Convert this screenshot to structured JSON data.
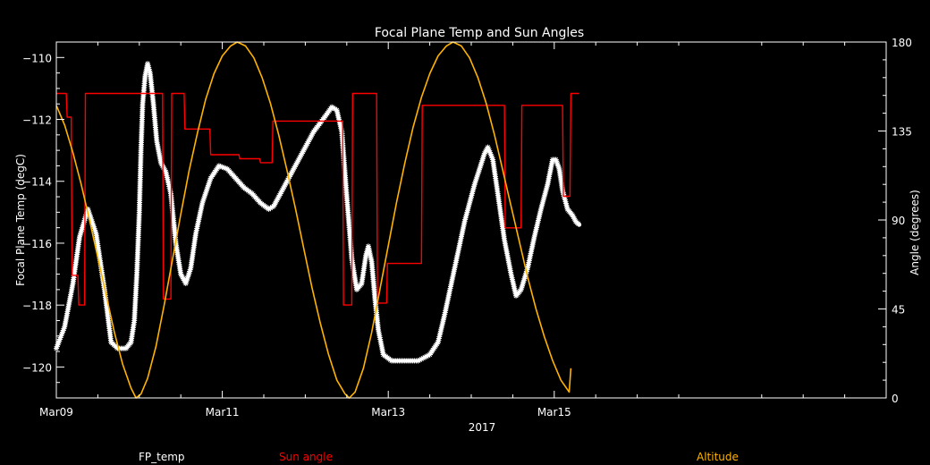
{
  "chart_data": {
    "type": "line",
    "title": "Focal Plane Temp and Sun Angles",
    "xlabel": "2017",
    "ylabel_left": "Focal Plane Temp (degC)",
    "ylabel_right": "Angle (degrees)",
    "x_unit": "days since Mar09 2017 00:00",
    "xlim": [
      0,
      10
    ],
    "ylim_left": [
      -121,
      -109.5
    ],
    "ylim_right": [
      0,
      180
    ],
    "x_ticks": [
      {
        "v": 0,
        "label": "Mar09"
      },
      {
        "v": 2,
        "label": "Mar11"
      },
      {
        "v": 4,
        "label": "Mar13"
      },
      {
        "v": 6,
        "label": "Mar15"
      }
    ],
    "y_left_ticks": [
      {
        "v": -110,
        "label": "−110"
      },
      {
        "v": -112,
        "label": "−112"
      },
      {
        "v": -114,
        "label": "−114"
      },
      {
        "v": -116,
        "label": "−116"
      },
      {
        "v": -118,
        "label": "−118"
      },
      {
        "v": -120,
        "label": "−120"
      }
    ],
    "y_right_ticks": [
      {
        "v": 180,
        "label": "180"
      },
      {
        "v": 135,
        "label": "135"
      },
      {
        "v": 90,
        "label": "90"
      },
      {
        "v": 45,
        "label": "45"
      },
      {
        "v": 0,
        "label": "0"
      }
    ],
    "legend": [
      {
        "name": "FP_temp",
        "color": "#ffffff"
      },
      {
        "name": "Sun angle",
        "color": "#ff0000"
      },
      {
        "name": "Altitude",
        "color": "#ffb300"
      }
    ],
    "series": [
      {
        "name": "FP_temp",
        "axis": "left",
        "color": "#ffffff",
        "style": "markers",
        "points": [
          [
            0.0,
            -119.4
          ],
          [
            0.1,
            -118.7
          ],
          [
            0.2,
            -117.3
          ],
          [
            0.28,
            -115.8
          ],
          [
            0.38,
            -114.9
          ],
          [
            0.48,
            -115.7
          ],
          [
            0.58,
            -117.5
          ],
          [
            0.66,
            -119.2
          ],
          [
            0.74,
            -119.4
          ],
          [
            0.84,
            -119.4
          ],
          [
            0.9,
            -119.2
          ],
          [
            0.94,
            -118.5
          ],
          [
            0.97,
            -117.0
          ],
          [
            1.0,
            -115.0
          ],
          [
            1.02,
            -113.0
          ],
          [
            1.04,
            -111.5
          ],
          [
            1.07,
            -110.6
          ],
          [
            1.1,
            -110.2
          ],
          [
            1.13,
            -110.5
          ],
          [
            1.17,
            -111.5
          ],
          [
            1.21,
            -112.7
          ],
          [
            1.26,
            -113.4
          ],
          [
            1.32,
            -113.7
          ],
          [
            1.38,
            -114.4
          ],
          [
            1.44,
            -116.0
          ],
          [
            1.5,
            -117.0
          ],
          [
            1.56,
            -117.3
          ],
          [
            1.62,
            -116.8
          ],
          [
            1.68,
            -115.7
          ],
          [
            1.76,
            -114.7
          ],
          [
            1.86,
            -113.9
          ],
          [
            1.96,
            -113.5
          ],
          [
            2.06,
            -113.6
          ],
          [
            2.16,
            -113.9
          ],
          [
            2.26,
            -114.2
          ],
          [
            2.36,
            -114.4
          ],
          [
            2.46,
            -114.7
          ],
          [
            2.56,
            -114.9
          ],
          [
            2.62,
            -114.8
          ],
          [
            2.7,
            -114.4
          ],
          [
            2.8,
            -113.9
          ],
          [
            2.96,
            -113.1
          ],
          [
            3.1,
            -112.4
          ],
          [
            3.24,
            -111.9
          ],
          [
            3.32,
            -111.6
          ],
          [
            3.38,
            -111.7
          ],
          [
            3.44,
            -112.4
          ],
          [
            3.5,
            -114.5
          ],
          [
            3.56,
            -116.5
          ],
          [
            3.62,
            -117.5
          ],
          [
            3.68,
            -117.3
          ],
          [
            3.73,
            -116.4
          ],
          [
            3.76,
            -116.1
          ],
          [
            3.8,
            -116.6
          ],
          [
            3.84,
            -117.8
          ],
          [
            3.88,
            -118.8
          ],
          [
            3.94,
            -119.6
          ],
          [
            4.04,
            -119.8
          ],
          [
            4.2,
            -119.8
          ],
          [
            4.36,
            -119.8
          ],
          [
            4.5,
            -119.6
          ],
          [
            4.6,
            -119.2
          ],
          [
            4.68,
            -118.3
          ],
          [
            4.8,
            -116.8
          ],
          [
            4.92,
            -115.3
          ],
          [
            5.04,
            -114.1
          ],
          [
            5.16,
            -113.1
          ],
          [
            5.2,
            -112.9
          ],
          [
            5.26,
            -113.3
          ],
          [
            5.32,
            -114.4
          ],
          [
            5.4,
            -115.9
          ],
          [
            5.48,
            -117.0
          ],
          [
            5.54,
            -117.7
          ],
          [
            5.6,
            -117.5
          ],
          [
            5.68,
            -116.8
          ],
          [
            5.76,
            -115.8
          ],
          [
            5.84,
            -114.9
          ],
          [
            5.92,
            -114.1
          ],
          [
            5.98,
            -113.3
          ],
          [
            6.02,
            -113.3
          ],
          [
            6.06,
            -113.6
          ],
          [
            6.1,
            -114.3
          ],
          [
            6.16,
            -114.9
          ],
          [
            6.22,
            -115.1
          ],
          [
            6.26,
            -115.3
          ],
          [
            6.3,
            -115.4
          ]
        ]
      },
      {
        "name": "Sun angle",
        "axis": "right",
        "color": "#ff0000",
        "style": "step",
        "points": [
          [
            0.0,
            154
          ],
          [
            0.12,
            154
          ],
          [
            0.13,
            142
          ],
          [
            0.18,
            142
          ],
          [
            0.19,
            62
          ],
          [
            0.26,
            62
          ],
          [
            0.27,
            47
          ],
          [
            0.34,
            47
          ],
          [
            0.35,
            154
          ],
          [
            1.28,
            154
          ],
          [
            1.29,
            50
          ],
          [
            1.38,
            50
          ],
          [
            1.39,
            154
          ],
          [
            1.54,
            154
          ],
          [
            1.55,
            136
          ],
          [
            1.85,
            136
          ],
          [
            1.86,
            123
          ],
          [
            2.2,
            123
          ],
          [
            2.21,
            121
          ],
          [
            2.45,
            121
          ],
          [
            2.46,
            119
          ],
          [
            2.6,
            119
          ],
          [
            2.61,
            140
          ],
          [
            3.45,
            140
          ],
          [
            3.46,
            47
          ],
          [
            3.56,
            47
          ],
          [
            3.57,
            154
          ],
          [
            3.86,
            154
          ],
          [
            3.87,
            48
          ],
          [
            3.98,
            48
          ],
          [
            3.99,
            68
          ],
          [
            4.4,
            68
          ],
          [
            4.41,
            148
          ],
          [
            5.4,
            148
          ],
          [
            5.41,
            86
          ],
          [
            5.6,
            86
          ],
          [
            5.61,
            148
          ],
          [
            6.1,
            148
          ],
          [
            6.11,
            102
          ],
          [
            6.19,
            102
          ],
          [
            6.2,
            154
          ],
          [
            6.3,
            154
          ]
        ]
      },
      {
        "name": "Altitude",
        "axis": "right",
        "color": "#ffb300",
        "style": "line",
        "points": [
          [
            0.0,
            148
          ],
          [
            0.1,
            138
          ],
          [
            0.2,
            124
          ],
          [
            0.3,
            108
          ],
          [
            0.4,
            90
          ],
          [
            0.5,
            71
          ],
          [
            0.6,
            52
          ],
          [
            0.7,
            33
          ],
          [
            0.8,
            17
          ],
          [
            0.9,
            5
          ],
          [
            0.96,
            0
          ],
          [
            1.02,
            2
          ],
          [
            1.1,
            10
          ],
          [
            1.2,
            26
          ],
          [
            1.3,
            47
          ],
          [
            1.4,
            70
          ],
          [
            1.5,
            93
          ],
          [
            1.6,
            115
          ],
          [
            1.7,
            134
          ],
          [
            1.8,
            151
          ],
          [
            1.9,
            164
          ],
          [
            2.0,
            173
          ],
          [
            2.1,
            178
          ],
          [
            2.18,
            180
          ],
          [
            2.28,
            178
          ],
          [
            2.38,
            172
          ],
          [
            2.48,
            162
          ],
          [
            2.58,
            149
          ],
          [
            2.68,
            133
          ],
          [
            2.78,
            115
          ],
          [
            2.88,
            96
          ],
          [
            2.98,
            76
          ],
          [
            3.08,
            56
          ],
          [
            3.18,
            38
          ],
          [
            3.28,
            22
          ],
          [
            3.38,
            9
          ],
          [
            3.48,
            2
          ],
          [
            3.53,
            0
          ],
          [
            3.6,
            3
          ],
          [
            3.7,
            15
          ],
          [
            3.8,
            33
          ],
          [
            3.9,
            55
          ],
          [
            4.0,
            77
          ],
          [
            4.1,
            99
          ],
          [
            4.2,
            119
          ],
          [
            4.3,
            137
          ],
          [
            4.4,
            152
          ],
          [
            4.5,
            164
          ],
          [
            4.6,
            173
          ],
          [
            4.7,
            178
          ],
          [
            4.78,
            180
          ],
          [
            4.88,
            178
          ],
          [
            4.98,
            172
          ],
          [
            5.08,
            162
          ],
          [
            5.18,
            149
          ],
          [
            5.28,
            133
          ],
          [
            5.38,
            115
          ],
          [
            5.48,
            97
          ],
          [
            5.58,
            79
          ],
          [
            5.68,
            61
          ],
          [
            5.78,
            45
          ],
          [
            5.88,
            31
          ],
          [
            5.98,
            19
          ],
          [
            6.08,
            9
          ],
          [
            6.18,
            3
          ],
          [
            6.2,
            15
          ]
        ]
      }
    ]
  }
}
